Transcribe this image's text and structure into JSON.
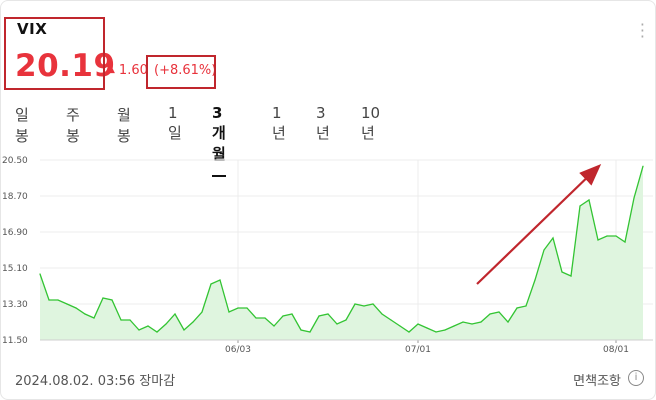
{
  "header": {
    "ticker": "VIX",
    "price": "20.19",
    "change": "1.60",
    "change_pct": "(+8.61%)"
  },
  "tabs": [
    "일봉",
    "주봉",
    "월봉",
    "1일",
    "3개월",
    "1년",
    "3년",
    "10년"
  ],
  "active_tab": "3개월",
  "footer": {
    "timestamp": "2024.08.02. 03:56 장마감",
    "note": "면책조항"
  },
  "colors": {
    "accent_red": "#e8333c",
    "line_green": "#33c433",
    "fill_green": "#dff5df",
    "annotation_red": "#c0262d"
  },
  "icons": {
    "more": "more-vertical-icon",
    "info": "info-icon",
    "up": "triangle-up-icon"
  },
  "chart_data": {
    "type": "area",
    "xlabel": "",
    "ylabel": "",
    "ylim": [
      11.5,
      20.5
    ],
    "yticks": [
      "20.50",
      "18.70",
      "16.90",
      "15.10",
      "13.30",
      "11.50"
    ],
    "xticks": [
      {
        "label": "06/03",
        "index": 22
      },
      {
        "label": "07/01",
        "index": 42
      },
      {
        "label": "08/01",
        "index": 64
      }
    ],
    "values": [
      14.8,
      13.5,
      13.5,
      13.3,
      13.1,
      12.8,
      12.6,
      13.6,
      13.5,
      12.5,
      12.5,
      12.0,
      12.2,
      11.9,
      12.3,
      12.8,
      12.0,
      12.4,
      12.9,
      14.3,
      14.5,
      12.9,
      13.1,
      13.1,
      12.6,
      12.6,
      12.2,
      12.7,
      12.8,
      12.0,
      11.9,
      12.7,
      12.8,
      12.3,
      12.5,
      13.3,
      13.2,
      13.3,
      12.8,
      12.5,
      12.2,
      11.9,
      12.3,
      12.1,
      11.9,
      12.0,
      12.2,
      12.4,
      12.3,
      12.4,
      12.8,
      12.9,
      12.4,
      13.1,
      13.2,
      14.5,
      16.0,
      16.6,
      14.9,
      14.7,
      18.2,
      18.5,
      16.5,
      16.7,
      16.7,
      16.4,
      18.6,
      20.19
    ]
  }
}
